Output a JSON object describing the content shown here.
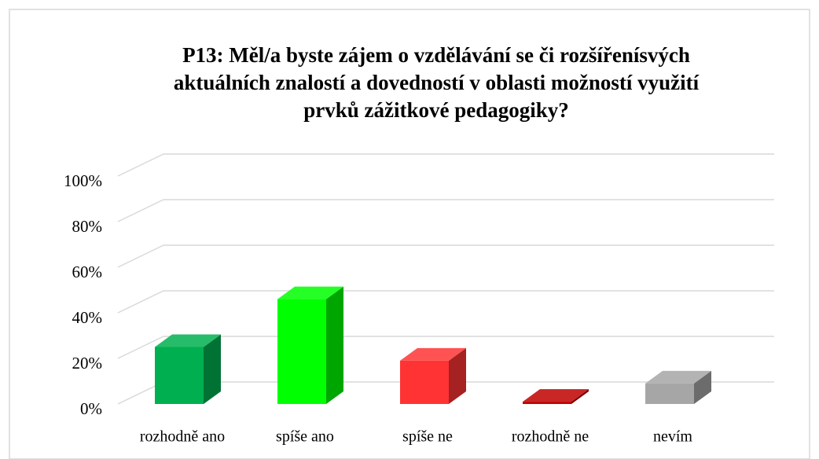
{
  "chart_data": {
    "type": "bar3d",
    "title": [
      "P13: Měl/a byste zájem o vzdělávání se či rozšířenísvých",
      "aktuálních znalostí a dovedností v oblasti možností využití",
      "prvků zážitkové pedagogiky?"
    ],
    "categories": [
      "rozhodně ano",
      "spíše ano",
      "spíše ne",
      "rozhodně ne",
      "nevím"
    ],
    "values": [
      25,
      46,
      19,
      1,
      9
    ],
    "colors": [
      "#00b050",
      "#00ff00",
      "#ff3333",
      "#c00000",
      "#a6a6a6"
    ],
    "ylim": [
      0,
      100
    ],
    "yticks": [
      {
        "value": 0,
        "label": "0%"
      },
      {
        "value": 20,
        "label": "20%"
      },
      {
        "value": 40,
        "label": "40%"
      },
      {
        "value": 60,
        "label": "60%"
      },
      {
        "value": 80,
        "label": "80%"
      },
      {
        "value": 100,
        "label": "100%"
      }
    ],
    "grid": true
  }
}
